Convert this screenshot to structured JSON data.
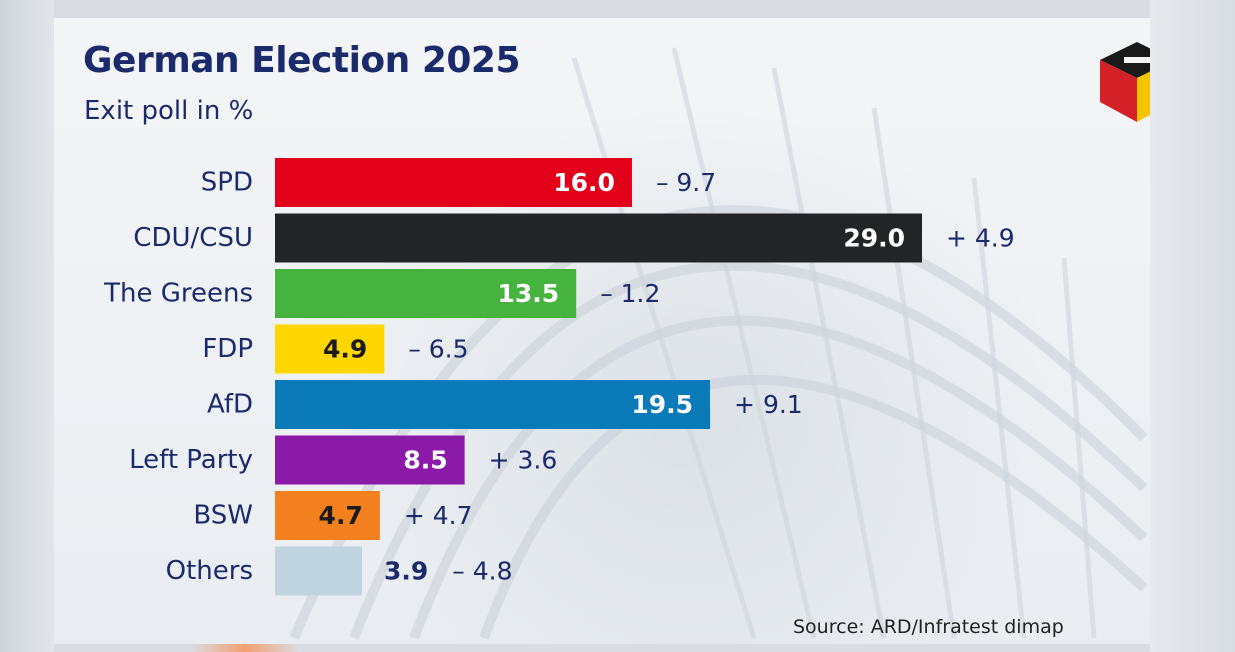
{
  "header": {
    "title": "German Election 2025",
    "subtitle": "Exit poll in %"
  },
  "footer": {
    "source": "Source: ARD/Infratest dimap"
  },
  "logo": {
    "icon": "ballot-box-german-flag-icon",
    "colors": [
      "#1a1a1a",
      "#d42027",
      "#f5c400"
    ]
  },
  "chart_data": {
    "type": "bar",
    "orientation": "horizontal",
    "title": "German Election 2025",
    "subtitle": "Exit poll in %",
    "xlim": [
      0,
      30
    ],
    "grid": false,
    "categories": [
      "SPD",
      "CDU/CSU",
      "The Greens",
      "FDP",
      "AfD",
      "Left Party",
      "BSW",
      "Others"
    ],
    "values": [
      16.0,
      29.0,
      13.5,
      4.9,
      19.5,
      8.5,
      4.7,
      3.9
    ],
    "value_labels": [
      "16.0",
      "29.0",
      "13.5",
      "4.9",
      "19.5",
      "8.5",
      "4.7",
      "3.9"
    ],
    "changes": [
      -9.7,
      4.9,
      -1.2,
      -6.5,
      9.1,
      3.6,
      4.7,
      -4.8
    ],
    "change_labels": [
      "– 9.7",
      "+ 4.9",
      "– 1.2",
      "– 6.5",
      "+ 9.1",
      "+ 3.6",
      "+ 4.7",
      "– 4.8"
    ],
    "colors": [
      "#e2001a",
      "#222427",
      "#46b33e",
      "#ffd700",
      "#0a7ab8",
      "#8b1aa8",
      "#f2801e",
      "#bfd4df"
    ],
    "label_colors": [
      "#ffffff",
      "#ffffff",
      "#ffffff",
      "#1a1a1a",
      "#ffffff",
      "#ffffff",
      "#1a1a1a",
      "#1b2a6b"
    ],
    "label_inside": [
      true,
      true,
      true,
      true,
      true,
      true,
      true,
      false
    ]
  }
}
